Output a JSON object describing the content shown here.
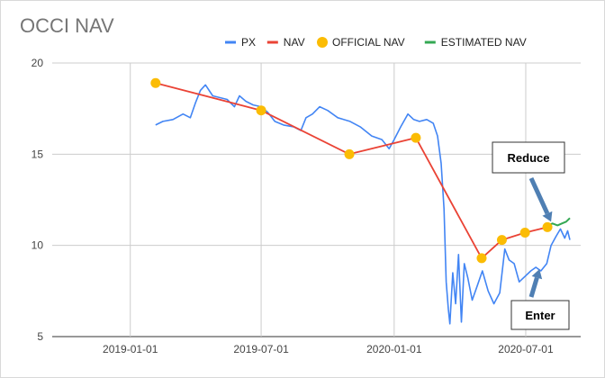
{
  "chart_data": {
    "type": "line",
    "title": "OCCI NAV",
    "xlabel": "",
    "ylabel": "",
    "x_ticks": [
      "2019-01-01",
      "2019-07-01",
      "2020-01-01",
      "2020-07-01"
    ],
    "y_ticks": [
      5,
      10,
      15,
      20
    ],
    "ylim": [
      5,
      20
    ],
    "xlim": [
      "2018-09-15",
      "2020-09-15"
    ],
    "grid": true,
    "legend_position": "top-right",
    "series": [
      {
        "name": "PX",
        "color": "#4285F4",
        "points": [
          [
            "2019-02-05",
            16.6
          ],
          [
            "2019-02-15",
            16.8
          ],
          [
            "2019-03-01",
            16.9
          ],
          [
            "2019-03-15",
            17.2
          ],
          [
            "2019-03-25",
            17.0
          ],
          [
            "2019-04-01",
            17.8
          ],
          [
            "2019-04-08",
            18.5
          ],
          [
            "2019-04-15",
            18.8
          ],
          [
            "2019-04-25",
            18.2
          ],
          [
            "2019-05-05",
            18.1
          ],
          [
            "2019-05-15",
            18.0
          ],
          [
            "2019-05-25",
            17.6
          ],
          [
            "2019-06-01",
            18.2
          ],
          [
            "2019-06-10",
            17.9
          ],
          [
            "2019-06-20",
            17.7
          ],
          [
            "2019-07-01",
            17.6
          ],
          [
            "2019-07-10",
            17.3
          ],
          [
            "2019-07-20",
            16.8
          ],
          [
            "2019-08-01",
            16.6
          ],
          [
            "2019-08-15",
            16.5
          ],
          [
            "2019-08-25",
            16.3
          ],
          [
            "2019-09-01",
            17.0
          ],
          [
            "2019-09-10",
            17.2
          ],
          [
            "2019-09-20",
            17.6
          ],
          [
            "2019-10-01",
            17.4
          ],
          [
            "2019-10-15",
            17.0
          ],
          [
            "2019-11-01",
            16.8
          ],
          [
            "2019-11-15",
            16.5
          ],
          [
            "2019-12-01",
            16.0
          ],
          [
            "2019-12-15",
            15.8
          ],
          [
            "2019-12-25",
            15.3
          ],
          [
            "2020-01-01",
            15.8
          ],
          [
            "2020-01-10",
            16.5
          ],
          [
            "2020-01-20",
            17.2
          ],
          [
            "2020-01-28",
            16.9
          ],
          [
            "2020-02-05",
            16.8
          ],
          [
            "2020-02-15",
            16.9
          ],
          [
            "2020-02-24",
            16.7
          ],
          [
            "2020-03-01",
            16.0
          ],
          [
            "2020-03-06",
            14.5
          ],
          [
            "2020-03-10",
            12.0
          ],
          [
            "2020-03-13",
            8.0
          ],
          [
            "2020-03-16",
            6.5
          ],
          [
            "2020-03-18",
            5.7
          ],
          [
            "2020-03-22",
            8.5
          ],
          [
            "2020-03-26",
            6.8
          ],
          [
            "2020-03-30",
            9.5
          ],
          [
            "2020-04-03",
            5.8
          ],
          [
            "2020-04-07",
            9.0
          ],
          [
            "2020-04-12",
            8.2
          ],
          [
            "2020-04-18",
            7.0
          ],
          [
            "2020-04-25",
            7.8
          ],
          [
            "2020-05-02",
            8.6
          ],
          [
            "2020-05-10",
            7.5
          ],
          [
            "2020-05-18",
            6.8
          ],
          [
            "2020-05-26",
            7.4
          ],
          [
            "2020-06-02",
            9.8
          ],
          [
            "2020-06-08",
            9.2
          ],
          [
            "2020-06-15",
            9.0
          ],
          [
            "2020-06-22",
            8.0
          ],
          [
            "2020-06-30",
            8.3
          ],
          [
            "2020-07-08",
            8.6
          ],
          [
            "2020-07-15",
            8.8
          ],
          [
            "2020-07-22",
            8.6
          ],
          [
            "2020-07-30",
            9.0
          ],
          [
            "2020-08-05",
            10.0
          ],
          [
            "2020-08-12",
            10.5
          ],
          [
            "2020-08-18",
            10.9
          ],
          [
            "2020-08-24",
            10.4
          ],
          [
            "2020-08-28",
            10.8
          ],
          [
            "2020-08-31",
            10.3
          ]
        ]
      },
      {
        "name": "NAV",
        "color": "#EA4335",
        "points": [
          [
            "2019-02-05",
            18.9
          ],
          [
            "2019-07-01",
            17.4
          ],
          [
            "2019-10-31",
            15.0
          ],
          [
            "2020-01-31",
            15.9
          ],
          [
            "2020-05-01",
            9.3
          ],
          [
            "2020-05-29",
            10.3
          ],
          [
            "2020-06-30",
            10.7
          ],
          [
            "2020-07-31",
            11.0
          ]
        ]
      },
      {
        "name": "OFFICIAL NAV",
        "color": "#FBBC04",
        "marker": "dot",
        "points": [
          [
            "2019-02-05",
            18.9
          ],
          [
            "2019-07-01",
            17.4
          ],
          [
            "2019-10-31",
            15.0
          ],
          [
            "2020-01-31",
            15.9
          ],
          [
            "2020-05-01",
            9.3
          ],
          [
            "2020-05-29",
            10.3
          ],
          [
            "2020-06-30",
            10.7
          ],
          [
            "2020-07-31",
            11.0
          ]
        ]
      },
      {
        "name": "ESTIMATED NAV",
        "color": "#34A853",
        "points": [
          [
            "2020-08-01",
            11.1
          ],
          [
            "2020-08-07",
            11.2
          ],
          [
            "2020-08-14",
            11.1
          ],
          [
            "2020-08-20",
            11.2
          ],
          [
            "2020-08-26",
            11.3
          ],
          [
            "2020-08-31",
            11.5
          ]
        ]
      }
    ],
    "annotations": [
      {
        "text": "Reduce",
        "arrow_target": [
          "2020-08-05",
          11.3
        ]
      },
      {
        "text": "Enter",
        "arrow_target": [
          "2020-07-20",
          8.7
        ]
      }
    ]
  }
}
